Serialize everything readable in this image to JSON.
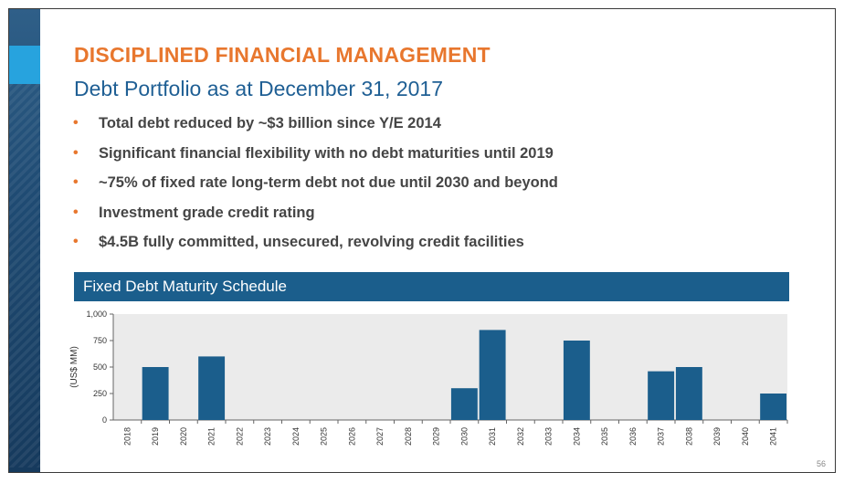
{
  "slide": {
    "title": "DISCIPLINED FINANCIAL MANAGEMENT",
    "subtitle": "Debt Portfolio as at December 31, 2017",
    "bullets": [
      "Total debt reduced by ~$3 billion since Y/E 2014",
      "Significant financial flexibility with no debt maturities until 2019",
      "~75% of fixed rate long-term debt not due until 2030 and beyond",
      "Investment grade credit rating",
      "$4.5B fully committed, unsecured, revolving credit facilities"
    ],
    "bullet_symbol": "•",
    "banner_label": "Fixed Debt Maturity Schedule",
    "page_number": "56",
    "colors": {
      "title": "#e8772e",
      "subtitle": "#1f5f94",
      "banner": "#1b5e8c",
      "bar": "#1b5e8c",
      "plot_bg": "#ebebeb"
    }
  },
  "chart_data": {
    "type": "bar",
    "title": "Fixed Debt Maturity Schedule",
    "ylabel": "(US$ MM)",
    "xlabel": "",
    "ylim": [
      0,
      1000
    ],
    "yticks": [
      0,
      250,
      500,
      750,
      1000
    ],
    "ytick_labels": [
      "0",
      "250",
      "500",
      "750",
      "1,000"
    ],
    "categories": [
      "2018",
      "2019",
      "2020",
      "2021",
      "2022",
      "2023",
      "2024",
      "2025",
      "2026",
      "2027",
      "2028",
      "2029",
      "2030",
      "2031",
      "2032",
      "2033",
      "2034",
      "2035",
      "2036",
      "2037",
      "2038",
      "2039",
      "2040",
      "2041"
    ],
    "values": [
      0,
      500,
      0,
      600,
      0,
      0,
      0,
      0,
      0,
      0,
      0,
      0,
      300,
      850,
      0,
      0,
      750,
      0,
      0,
      460,
      500,
      0,
      0,
      250
    ],
    "grid": false
  }
}
